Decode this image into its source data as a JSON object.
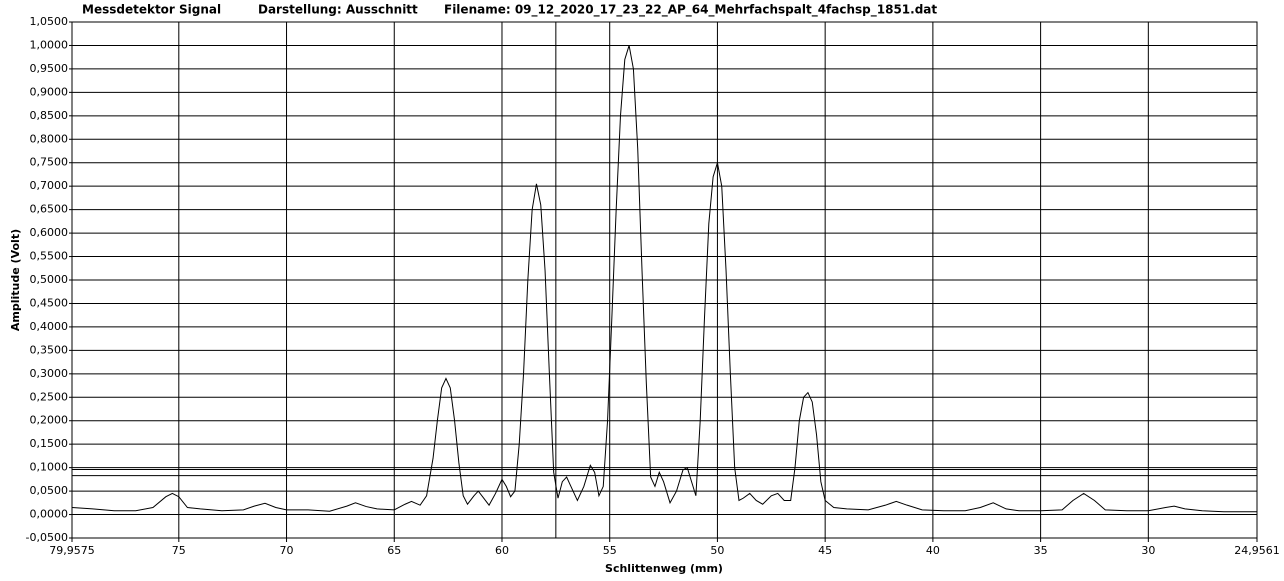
{
  "chart_data": {
    "type": "line",
    "title": "Messdetektor Signal",
    "subtitle": "Darstellung: Ausschnitt",
    "filename": "Filename: 09_12_2020_17_23_22_AP_64_Mehrfachspalt_4fachsp_1851.dat",
    "xlabel": "Schlittenweg (mm)",
    "ylabel": "Amplitude (Volt)",
    "color": "#000000",
    "grid": true,
    "x_reversed": true,
    "xlim": [
      79.9575,
      24.9561
    ],
    "ylim": [
      -0.05,
      1.05
    ],
    "xticks": [
      {
        "value": 79.9575,
        "label": "79,9575"
      },
      75,
      70,
      65,
      60,
      55,
      50,
      45,
      40,
      35,
      30,
      {
        "value": 24.9561,
        "label": "24,9561"
      }
    ],
    "yticks": [
      {
        "value": -0.05,
        "label": "-0,0500"
      },
      {
        "value": 0,
        "label": "0,0000"
      },
      {
        "value": 0.05,
        "label": "0,0500"
      },
      {
        "value": 0.1,
        "label": "0,1000"
      },
      {
        "value": 0.15,
        "label": "0,1500"
      },
      {
        "value": 0.2,
        "label": "0,2000"
      },
      {
        "value": 0.25,
        "label": "0,2500"
      },
      {
        "value": 0.3,
        "label": "0,3000"
      },
      {
        "value": 0.35,
        "label": "0,3500"
      },
      {
        "value": 0.4,
        "label": "0,4000"
      },
      {
        "value": 0.45,
        "label": "0,4500"
      },
      {
        "value": 0.5,
        "label": "0,5000"
      },
      {
        "value": 0.55,
        "label": "0,5500"
      },
      {
        "value": 0.6,
        "label": "0,6000"
      },
      {
        "value": 0.65,
        "label": "0,6500"
      },
      {
        "value": 0.7,
        "label": "0,7000"
      },
      {
        "value": 0.75,
        "label": "0,7500"
      },
      {
        "value": 0.8,
        "label": "0,8000"
      },
      {
        "value": 0.85,
        "label": "0,8500"
      },
      {
        "value": 0.9,
        "label": "0,9000"
      },
      {
        "value": 0.95,
        "label": "0,9500"
      },
      {
        "value": 1.0,
        "label": "1,0000"
      },
      {
        "value": 1.05,
        "label": "1,0500"
      }
    ],
    "cursors": {
      "x": 57.5,
      "y": [
        0.096,
        0.083
      ]
    },
    "x": [
      79.95,
      79.0,
      78.0,
      77.0,
      76.2,
      75.6,
      75.3,
      75.0,
      74.6,
      74.0,
      73.0,
      72.0,
      71.5,
      71.0,
      70.5,
      70.0,
      69.0,
      68.0,
      67.2,
      66.8,
      66.3,
      65.8,
      65.0,
      64.5,
      64.2,
      63.8,
      63.5,
      63.2,
      63.0,
      62.8,
      62.6,
      62.4,
      62.2,
      62.0,
      61.8,
      61.6,
      61.3,
      61.1,
      60.9,
      60.6,
      60.3,
      60.0,
      59.8,
      59.6,
      59.4,
      59.2,
      59.0,
      58.8,
      58.6,
      58.4,
      58.2,
      58.0,
      57.8,
      57.6,
      57.4,
      57.2,
      57.0,
      56.8,
      56.5,
      56.2,
      55.9,
      55.7,
      55.5,
      55.3,
      55.1,
      54.9,
      54.7,
      54.5,
      54.3,
      54.1,
      53.9,
      53.7,
      53.5,
      53.3,
      53.1,
      52.9,
      52.7,
      52.5,
      52.2,
      51.9,
      51.6,
      51.4,
      51.2,
      51.0,
      50.8,
      50.6,
      50.4,
      50.2,
      50.0,
      49.8,
      49.6,
      49.4,
      49.2,
      49.0,
      48.8,
      48.5,
      48.2,
      47.9,
      47.5,
      47.2,
      46.9,
      46.6,
      46.4,
      46.2,
      46.0,
      45.8,
      45.6,
      45.4,
      45.2,
      45.0,
      44.6,
      44.0,
      43.0,
      42.2,
      41.7,
      41.2,
      40.5,
      39.5,
      38.5,
      37.8,
      37.2,
      36.6,
      36.0,
      35.0,
      34.0,
      33.5,
      33.0,
      32.5,
      32.0,
      31.0,
      30.0,
      29.2,
      28.8,
      28.3,
      27.5,
      26.5,
      25.5,
      24.96
    ],
    "values": [
      0.015,
      0.012,
      0.008,
      0.008,
      0.015,
      0.038,
      0.045,
      0.038,
      0.015,
      0.012,
      0.008,
      0.01,
      0.018,
      0.024,
      0.015,
      0.01,
      0.01,
      0.007,
      0.018,
      0.025,
      0.017,
      0.012,
      0.01,
      0.022,
      0.028,
      0.02,
      0.04,
      0.12,
      0.2,
      0.27,
      0.29,
      0.27,
      0.2,
      0.11,
      0.04,
      0.022,
      0.04,
      0.05,
      0.038,
      0.02,
      0.045,
      0.075,
      0.06,
      0.038,
      0.05,
      0.15,
      0.3,
      0.5,
      0.65,
      0.705,
      0.66,
      0.52,
      0.3,
      0.09,
      0.035,
      0.07,
      0.08,
      0.06,
      0.03,
      0.06,
      0.105,
      0.09,
      0.04,
      0.06,
      0.2,
      0.42,
      0.65,
      0.85,
      0.97,
      1.0,
      0.95,
      0.78,
      0.52,
      0.28,
      0.08,
      0.06,
      0.09,
      0.07,
      0.025,
      0.05,
      0.095,
      0.1,
      0.07,
      0.04,
      0.2,
      0.42,
      0.62,
      0.72,
      0.75,
      0.7,
      0.52,
      0.3,
      0.1,
      0.03,
      0.035,
      0.045,
      0.03,
      0.022,
      0.04,
      0.045,
      0.03,
      0.03,
      0.1,
      0.2,
      0.25,
      0.26,
      0.24,
      0.17,
      0.07,
      0.03,
      0.015,
      0.012,
      0.01,
      0.02,
      0.028,
      0.02,
      0.01,
      0.008,
      0.008,
      0.015,
      0.025,
      0.012,
      0.008,
      0.008,
      0.01,
      0.03,
      0.045,
      0.03,
      0.01,
      0.008,
      0.008,
      0.015,
      0.018,
      0.012,
      0.008,
      0.006,
      0.006,
      0.006
    ]
  }
}
